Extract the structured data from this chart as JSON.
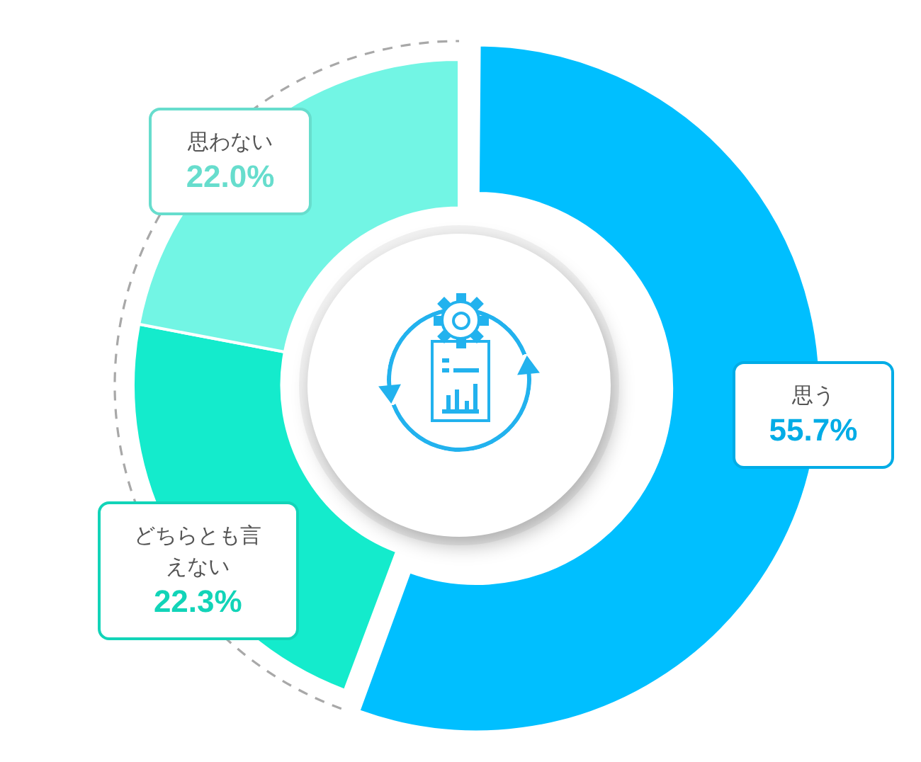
{
  "chart_data": {
    "type": "donut",
    "categories": [
      "思う",
      "どちらとも言えない",
      "思わない"
    ],
    "values": [
      55.7,
      22.3,
      22.0
    ],
    "colors": [
      "#00bfff",
      "#14ebcc",
      "#72f5e4"
    ],
    "value_labels": [
      "55.7%",
      "22.3%",
      "22.0%"
    ]
  }
}
